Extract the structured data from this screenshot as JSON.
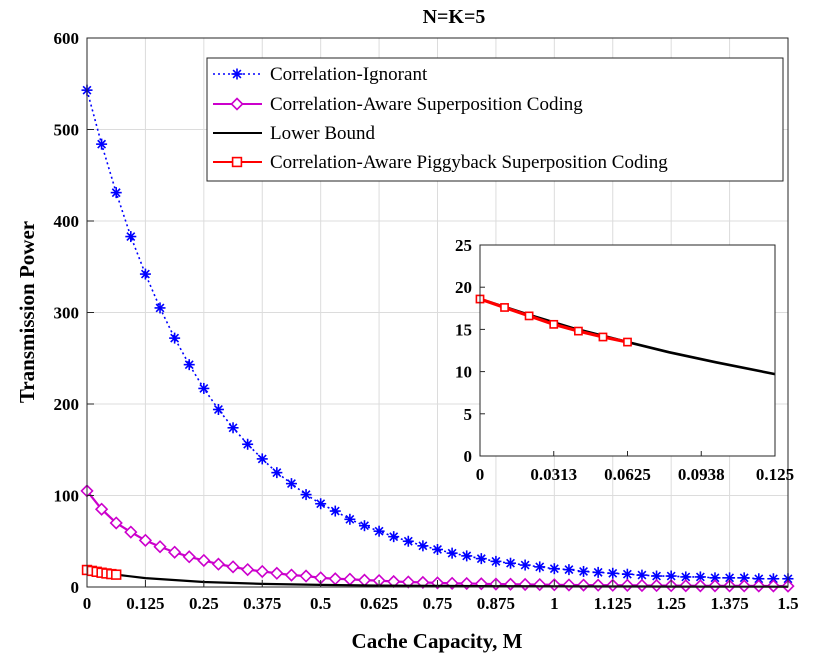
{
  "chart_data": [
    {
      "type": "line",
      "title": "N=K=5",
      "xlabel": "Cache Capacity, M",
      "ylabel": "Transmission Power",
      "xlim": [
        0,
        1.5
      ],
      "ylim": [
        0,
        600
      ],
      "xticks": [
        0,
        0.125,
        0.25,
        0.375,
        0.5,
        0.625,
        0.75,
        0.875,
        1,
        1.125,
        1.25,
        1.375,
        1.5
      ],
      "xtick_labels": [
        "0",
        "0.125",
        "0.25",
        "0.375",
        "0.5",
        "0.625",
        "0.75",
        "0.875",
        "1",
        "1.125",
        "1.25",
        "1.375",
        "1.5"
      ],
      "yticks": [
        0,
        100,
        200,
        300,
        400,
        500,
        600
      ],
      "ytick_labels": [
        "0",
        "100",
        "200",
        "300",
        "400",
        "500",
        "600"
      ],
      "grid": true,
      "legend_position": "top-right",
      "series": [
        {
          "name": "Correlation-Ignorant",
          "color": "#0000ff",
          "style": "dotted",
          "marker": "asterisk",
          "x": [
            0,
            0.03125,
            0.0625,
            0.09375,
            0.125,
            0.15625,
            0.1875,
            0.21875,
            0.25,
            0.28125,
            0.3125,
            0.34375,
            0.375,
            0.40625,
            0.4375,
            0.46875,
            0.5,
            0.53125,
            0.5625,
            0.59375,
            0.625,
            0.65625,
            0.6875,
            0.71875,
            0.75,
            0.78125,
            0.8125,
            0.84375,
            0.875,
            0.90625,
            0.9375,
            0.96875,
            1,
            1.03125,
            1.0625,
            1.09375,
            1.125,
            1.15625,
            1.1875,
            1.21875,
            1.25,
            1.28125,
            1.3125,
            1.34375,
            1.375,
            1.40625,
            1.4375,
            1.46875,
            1.5
          ],
          "y": [
            543,
            484,
            431,
            383,
            342,
            305,
            272,
            243,
            217,
            194,
            174,
            156,
            140,
            125,
            113,
            101,
            91,
            83,
            74,
            67,
            61,
            55,
            50,
            45,
            41,
            37,
            34,
            31,
            28,
            26,
            24,
            22,
            20,
            19,
            17,
            16,
            15,
            14,
            13,
            12,
            12,
            11,
            11,
            10,
            10,
            10,
            9,
            9,
            9
          ]
        },
        {
          "name": "Correlation-Aware Superposition Coding",
          "color": "#cc00cc",
          "style": "solid",
          "marker": "diamond",
          "x": [
            0,
            0.03125,
            0.0625,
            0.09375,
            0.125,
            0.15625,
            0.1875,
            0.21875,
            0.25,
            0.28125,
            0.3125,
            0.34375,
            0.375,
            0.40625,
            0.4375,
            0.46875,
            0.5,
            0.53125,
            0.5625,
            0.59375,
            0.625,
            0.65625,
            0.6875,
            0.71875,
            0.75,
            0.78125,
            0.8125,
            0.84375,
            0.875,
            0.90625,
            0.9375,
            0.96875,
            1,
            1.03125,
            1.0625,
            1.09375,
            1.125,
            1.15625,
            1.1875,
            1.21875,
            1.25,
            1.28125,
            1.3125,
            1.34375,
            1.375,
            1.40625,
            1.4375,
            1.46875,
            1.5
          ],
          "y": [
            105,
            85,
            70,
            60,
            51,
            44,
            38,
            33,
            29,
            25,
            22,
            19,
            17,
            15,
            13,
            12,
            10,
            9,
            8.5,
            7.5,
            7,
            6,
            5.5,
            5,
            4.5,
            4,
            3.8,
            3.5,
            3.2,
            3,
            2.8,
            2.6,
            2.4,
            2.2,
            2.1,
            2,
            1.9,
            1.8,
            1.7,
            1.6,
            1.5,
            1.4,
            1.3,
            1.3,
            1.2,
            1.2,
            1.1,
            1.1,
            1
          ]
        },
        {
          "name": "Lower Bound",
          "color": "#000000",
          "style": "solid",
          "marker": "none",
          "x": [
            0,
            0.0625,
            0.125,
            0.25,
            0.375,
            0.5,
            0.625,
            0.75,
            0.875,
            1,
            1.125,
            1.25,
            1.375,
            1.5
          ],
          "y": [
            18.6,
            13.5,
            9.7,
            5.5,
            3.4,
            2.3,
            1.6,
            1.2,
            0.9,
            0.7,
            0.55,
            0.45,
            0.35,
            0.3
          ]
        },
        {
          "name": "Correlation-Aware Piggyback Superposition Coding",
          "color": "#ff0000",
          "style": "solid",
          "marker": "square",
          "x": [
            0,
            0.0104,
            0.0208,
            0.03125,
            0.0417,
            0.0521,
            0.0625
          ],
          "y": [
            18.6,
            17.6,
            16.6,
            15.6,
            14.8,
            14.1,
            13.5
          ]
        }
      ]
    },
    {
      "type": "line",
      "title": "",
      "xlim": [
        0,
        0.125
      ],
      "ylim": [
        0,
        25
      ],
      "xticks": [
        0,
        0.03125,
        0.0625,
        0.09375,
        0.125
      ],
      "xtick_labels": [
        "0",
        "0.0313",
        "0.0625",
        "0.0938",
        "0.125"
      ],
      "yticks": [
        0,
        5,
        10,
        15,
        20,
        25
      ],
      "ytick_labels": [
        "0",
        "5",
        "10",
        "15",
        "20",
        "25"
      ],
      "grid": false,
      "series": [
        {
          "color": "#000000",
          "style": "solid",
          "marker": "none",
          "x": [
            0,
            0.02,
            0.04,
            0.0625,
            0.08,
            0.1,
            0.125
          ],
          "y": [
            18.6,
            16.8,
            15.1,
            13.5,
            12.3,
            11.1,
            9.7
          ]
        },
        {
          "color": "#ff0000",
          "style": "solid",
          "marker": "square",
          "x": [
            0,
            0.0104,
            0.0208,
            0.03125,
            0.0417,
            0.0521,
            0.0625
          ],
          "y": [
            18.6,
            17.6,
            16.6,
            15.6,
            14.8,
            14.1,
            13.5
          ]
        }
      ]
    }
  ]
}
